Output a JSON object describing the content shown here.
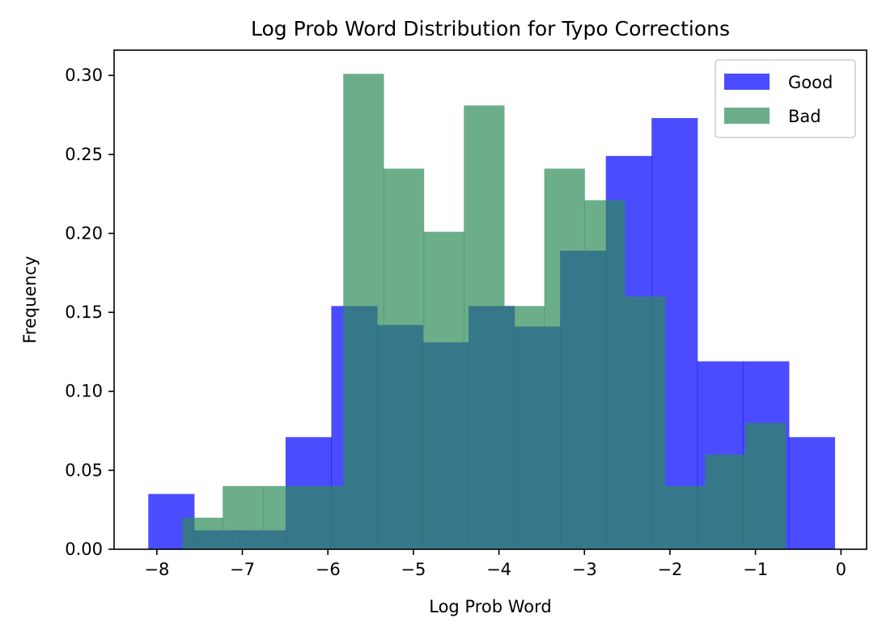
{
  "chart_data": {
    "type": "bar",
    "title": "Log Prob Word Distribution for Typo Corrections",
    "xlabel": "Log Prob Word",
    "ylabel": "Frequency",
    "xlim": [
      -8.5,
      0.3
    ],
    "ylim": [
      0,
      0.316
    ],
    "xticks": [
      -8,
      -7,
      -6,
      -5,
      -4,
      -3,
      -2,
      -1,
      0
    ],
    "xtick_labels": [
      "−8",
      "−7",
      "−6",
      "−5",
      "−4",
      "−3",
      "−2",
      "−1",
      "0"
    ],
    "yticks": [
      0.0,
      0.05,
      0.1,
      0.15,
      0.2,
      0.25,
      0.3
    ],
    "ytick_labels": [
      "0.00",
      "0.05",
      "0.10",
      "0.15",
      "0.20",
      "0.25",
      "0.30"
    ],
    "grid": false,
    "legend_position": "top-right",
    "series": [
      {
        "name": "Good",
        "color": "#0000ff",
        "opacity": 0.7,
        "bin_edges": [
          -8.1,
          -7.565,
          -7.03,
          -6.495,
          -5.96,
          -5.425,
          -4.89,
          -4.355,
          -3.82,
          -3.285,
          -2.75,
          -2.215,
          -1.68,
          -1.145,
          -0.61,
          -0.075
        ],
        "values": [
          0.035,
          0.012,
          0.012,
          0.071,
          0.154,
          0.142,
          0.131,
          0.154,
          0.141,
          0.189,
          0.249,
          0.273,
          0.119,
          0.119,
          0.071
        ]
      },
      {
        "name": "Bad",
        "color": "#2e8b57",
        "opacity": 0.7,
        "bin_edges": [
          -7.7,
          -7.23,
          -6.76,
          -6.29,
          -5.82,
          -5.35,
          -4.88,
          -4.41,
          -3.94,
          -3.47,
          -3.0,
          -2.53,
          -2.06,
          -1.59,
          -1.12,
          -0.65
        ],
        "values": [
          0.02,
          0.04,
          0.04,
          0.04,
          0.301,
          0.241,
          0.201,
          0.281,
          0.154,
          0.241,
          0.221,
          0.16,
          0.04,
          0.06,
          0.08
        ]
      }
    ]
  }
}
